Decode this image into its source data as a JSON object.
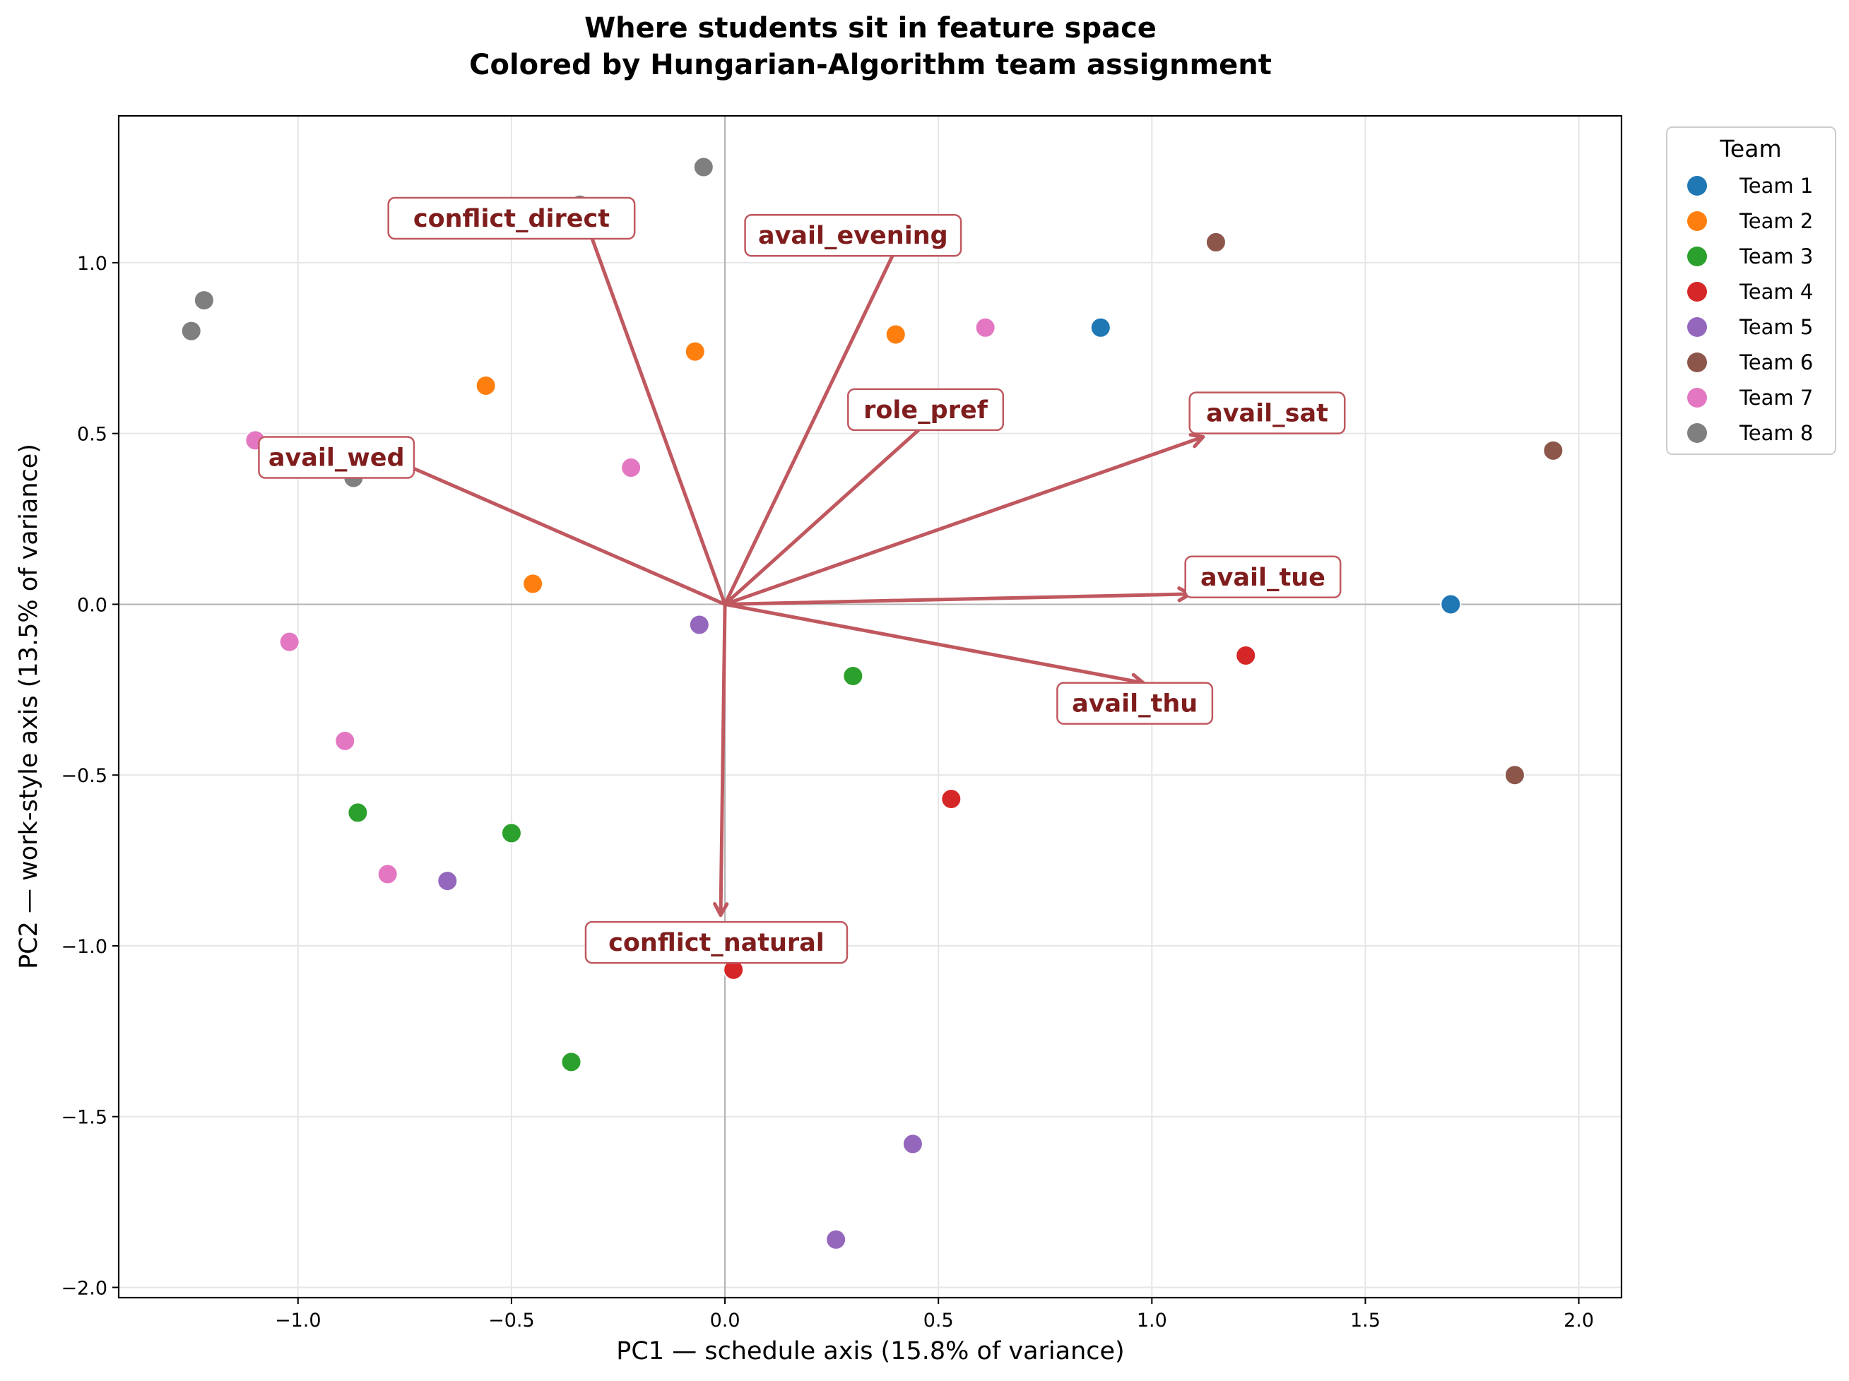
{
  "chart_data": {
    "type": "scatter",
    "title_line1": "Where students sit in feature space",
    "title_line2": "Colored by Hungarian-Algorithm team assignment",
    "xlabel": "PC1 — schedule axis  (15.8% of variance)",
    "ylabel": "PC2 — work-style axis  (13.5% of variance)",
    "xlim": [
      -1.42,
      2.1
    ],
    "ylim": [
      -2.03,
      1.43
    ],
    "xticks": [
      -1.0,
      -0.5,
      0.0,
      0.5,
      1.0,
      1.5,
      2.0
    ],
    "xtick_labels": [
      "−1.0",
      "−0.5",
      "0.0",
      "0.5",
      "1.0",
      "1.5",
      "2.0"
    ],
    "yticks": [
      1.0,
      0.5,
      0.0,
      -0.5,
      -1.0,
      -1.5,
      -2.0
    ],
    "ytick_labels": [
      "1.0",
      "0.5",
      "0.0",
      "−0.5",
      "−1.0",
      "−1.5",
      "−2.0"
    ],
    "grid": true,
    "legend_title": "Team",
    "legend_placement": "outside upper right",
    "series": [
      {
        "name": "Team 1",
        "color": "#1f77b4",
        "points": [
          [
            0.88,
            0.81
          ],
          [
            1.7,
            0.0
          ]
        ]
      },
      {
        "name": "Team 2",
        "color": "#ff7f0e",
        "points": [
          [
            -0.07,
            0.74
          ],
          [
            -0.56,
            0.64
          ],
          [
            0.4,
            0.79
          ],
          [
            -0.45,
            0.06
          ]
        ]
      },
      {
        "name": "Team 3",
        "color": "#2ca02c",
        "points": [
          [
            0.3,
            -0.21
          ],
          [
            -0.86,
            -0.61
          ],
          [
            -0.5,
            -0.67
          ],
          [
            -0.36,
            -1.34
          ]
        ]
      },
      {
        "name": "Team 4",
        "color": "#d62728",
        "points": [
          [
            1.22,
            -0.15
          ],
          [
            0.53,
            -0.57
          ],
          [
            0.02,
            -1.07
          ]
        ]
      },
      {
        "name": "Team 5",
        "color": "#9467bd",
        "points": [
          [
            -0.06,
            -0.06
          ],
          [
            -0.65,
            -0.81
          ],
          [
            0.44,
            -1.58
          ],
          [
            0.26,
            -1.86
          ]
        ]
      },
      {
        "name": "Team 6",
        "color": "#8c564b",
        "points": [
          [
            1.15,
            1.06
          ],
          [
            1.94,
            0.45
          ],
          [
            1.85,
            -0.5
          ]
        ]
      },
      {
        "name": "Team 7",
        "color": "#e377c2",
        "points": [
          [
            0.61,
            0.81
          ],
          [
            -1.1,
            0.48
          ],
          [
            -0.22,
            0.4
          ],
          [
            -1.02,
            -0.11
          ],
          [
            -0.89,
            -0.4
          ],
          [
            -0.79,
            -0.79
          ]
        ]
      },
      {
        "name": "Team 8",
        "color": "#7f7f7f",
        "points": [
          [
            -0.05,
            1.28
          ],
          [
            -1.22,
            0.89
          ],
          [
            -1.25,
            0.8
          ],
          [
            -0.87,
            0.37
          ],
          [
            -0.34,
            1.17
          ]
        ]
      }
    ],
    "loadings": [
      {
        "label": "conflict_direct",
        "dx": -0.34,
        "dy": 1.17,
        "label_x": -0.5,
        "label_y": 1.13,
        "arrowhead": false
      },
      {
        "label": "avail_evening",
        "dx": 0.4,
        "dy": 1.04,
        "label_x": 0.3,
        "label_y": 1.08,
        "arrowhead": false
      },
      {
        "label": "role_pref",
        "dx": 0.48,
        "dy": 0.54,
        "label_x": 0.47,
        "label_y": 0.57,
        "arrowhead": false
      },
      {
        "label": "avail_sat",
        "dx": 1.12,
        "dy": 0.49,
        "label_x": 1.27,
        "label_y": 0.56,
        "arrowhead": true
      },
      {
        "label": "avail_wed",
        "dx": -0.77,
        "dy": 0.42,
        "label_x": -0.91,
        "label_y": 0.43,
        "arrowhead": false
      },
      {
        "label": "avail_tue",
        "dx": 1.09,
        "dy": 0.03,
        "label_x": 1.26,
        "label_y": 0.08,
        "arrowhead": true
      },
      {
        "label": "avail_thu",
        "dx": 0.98,
        "dy": -0.23,
        "label_x": 0.96,
        "label_y": -0.29,
        "arrowhead": true
      },
      {
        "label": "conflict_natural",
        "dx": -0.01,
        "dy": -0.91,
        "label_x": -0.02,
        "label_y": -0.99,
        "arrowhead": true
      }
    ],
    "loading_color": "#c0585f",
    "label_text_color": "#7f1d1d"
  }
}
